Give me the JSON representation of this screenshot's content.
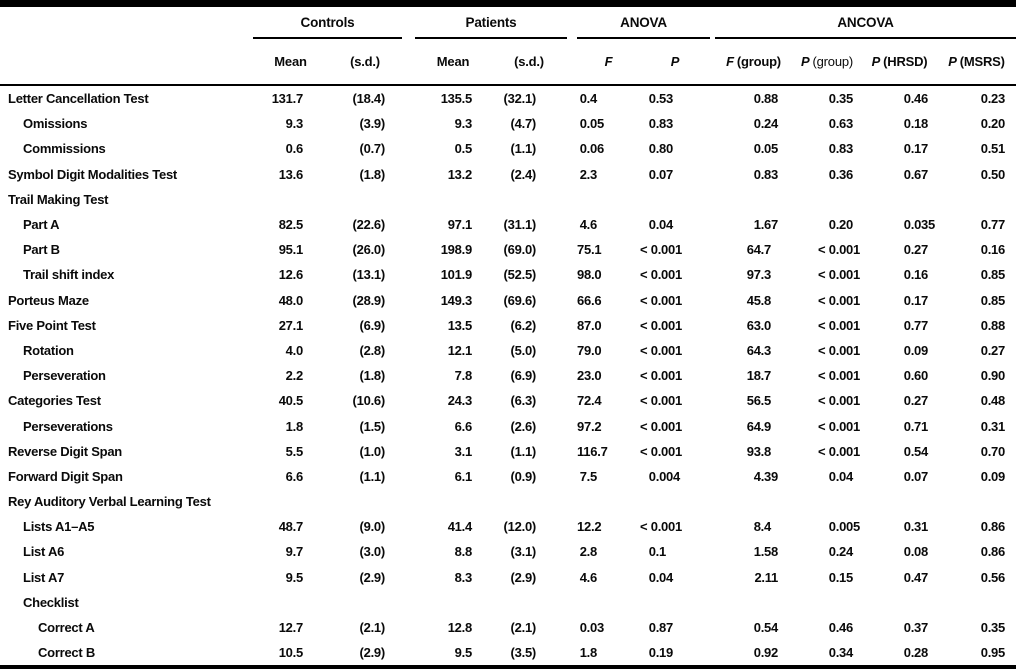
{
  "table": {
    "groups": {
      "controls": "Controls",
      "patients": "Patients",
      "anova": "ANOVA",
      "ancova": "ANCOVA"
    },
    "subheaders": {
      "controls_mean": "Mean",
      "controls_sd": "(s.d.)",
      "patients_mean": "Mean",
      "patients_sd": "(s.d.)",
      "anova_f": "F",
      "anova_p": "P",
      "ancova_f_group_sym": "F",
      "ancova_f_group_rest": "(group)",
      "ancova_p_group_sym": "P",
      "ancova_p_group_rest": "(group)",
      "ancova_p_hrsd_sym": "P",
      "ancova_p_hrsd_rest": "(HRSD)",
      "ancova_p_msrs_sym": "P",
      "ancova_p_msrs_rest": "(MSRS)"
    },
    "rows": [
      {
        "label": "Letter Cancellation Test",
        "indent": 0,
        "values": [
          "131.7",
          "(18.4)",
          "135.5",
          "(32.1)",
          "0.4",
          "0.53",
          "0.88",
          "0.35",
          "0.46",
          "0.23"
        ]
      },
      {
        "label": "Omissions",
        "indent": 1,
        "values": [
          "9.3",
          "(3.9)",
          "9.3",
          "(4.7)",
          "0.05",
          "0.83",
          "0.24",
          "0.63",
          "0.18",
          "0.20"
        ]
      },
      {
        "label": "Commissions",
        "indent": 1,
        "values": [
          "0.6",
          "(0.7)",
          "0.5",
          "(1.1)",
          "0.06",
          "0.80",
          "0.05",
          "0.83",
          "0.17",
          "0.51"
        ]
      },
      {
        "label": "Symbol Digit Modalities Test",
        "indent": 0,
        "values": [
          "13.6",
          "(1.8)",
          "13.2",
          "(2.4)",
          "2.3",
          "0.07",
          "0.83",
          "0.36",
          "0.67",
          "0.50"
        ]
      },
      {
        "label": "Trail Making Test",
        "indent": 0,
        "values": []
      },
      {
        "label": "Part A",
        "indent": 1,
        "values": [
          "82.5",
          "(22.6)",
          "97.1",
          "(31.1)",
          "4.6",
          "0.04",
          "1.67",
          "0.20",
          "0.035",
          "0.77"
        ]
      },
      {
        "label": "Part B",
        "indent": 1,
        "values": [
          "95.1",
          "(26.0)",
          "198.9",
          "(69.0)",
          "75.1",
          "< 0.001",
          "64.7",
          "< 0.001",
          "0.27",
          "0.16"
        ]
      },
      {
        "label": "Trail shift index",
        "indent": 1,
        "values": [
          "12.6",
          "(13.1)",
          "101.9",
          "(52.5)",
          "98.0",
          "< 0.001",
          "97.3",
          "< 0.001",
          "0.16",
          "0.85"
        ]
      },
      {
        "label": "Porteus Maze",
        "indent": 0,
        "values": [
          "48.0",
          "(28.9)",
          "149.3",
          "(69.6)",
          "66.6",
          "< 0.001",
          "45.8",
          "< 0.001",
          "0.17",
          "0.85"
        ]
      },
      {
        "label": "Five Point Test",
        "indent": 0,
        "values": [
          "27.1",
          "(6.9)",
          "13.5",
          "(6.2)",
          "87.0",
          "< 0.001",
          "63.0",
          "< 0.001",
          "0.77",
          "0.88"
        ]
      },
      {
        "label": "Rotation",
        "indent": 1,
        "values": [
          "4.0",
          "(2.8)",
          "12.1",
          "(5.0)",
          "79.0",
          "< 0.001",
          "64.3",
          "< 0.001",
          "0.09",
          "0.27"
        ]
      },
      {
        "label": "Perseveration",
        "indent": 1,
        "values": [
          "2.2",
          "(1.8)",
          "7.8",
          "(6.9)",
          "23.0",
          "< 0.001",
          "18.7",
          "< 0.001",
          "0.60",
          "0.90"
        ]
      },
      {
        "label": "Categories Test",
        "indent": 0,
        "values": [
          "40.5",
          "(10.6)",
          "24.3",
          "(6.3)",
          "72.4",
          "< 0.001",
          "56.5",
          "< 0.001",
          "0.27",
          "0.48"
        ]
      },
      {
        "label": "Perseverations",
        "indent": 1,
        "values": [
          "1.8",
          "(1.5)",
          "6.6",
          "(2.6)",
          "97.2",
          "< 0.001",
          "64.9",
          "< 0.001",
          "0.71",
          "0.31"
        ]
      },
      {
        "label": "Reverse Digit Span",
        "indent": 0,
        "values": [
          "5.5",
          "(1.0)",
          "3.1",
          "(1.1)",
          "116.7",
          "< 0.001",
          "93.8",
          "< 0.001",
          "0.54",
          "0.70"
        ]
      },
      {
        "label": "Forward Digit Span",
        "indent": 0,
        "values": [
          "6.6",
          "(1.1)",
          "6.1",
          "(0.9)",
          "7.5",
          "0.004",
          "4.39",
          "0.04",
          "0.07",
          "0.09"
        ]
      },
      {
        "label": "Rey Auditory Verbal Learning Test",
        "indent": 0,
        "values": []
      },
      {
        "label": "Lists A1–A5",
        "indent": 1,
        "values": [
          "48.7",
          "(9.0)",
          "41.4",
          "(12.0)",
          "12.2",
          "< 0.001",
          "8.4",
          "0.005",
          "0.31",
          "0.86"
        ]
      },
      {
        "label": "List A6",
        "indent": 1,
        "values": [
          "9.7",
          "(3.0)",
          "8.8",
          "(3.1)",
          "2.8",
          "0.1",
          "1.58",
          "0.24",
          "0.08",
          "0.86"
        ]
      },
      {
        "label": "List A7",
        "indent": 1,
        "values": [
          "9.5",
          "(2.9)",
          "8.3",
          "(2.9)",
          "4.6",
          "0.04",
          "2.11",
          "0.15",
          "0.47",
          "0.56"
        ]
      },
      {
        "label": "Checklist",
        "indent": 1,
        "values": []
      },
      {
        "label": "Correct A",
        "indent": 2,
        "values": [
          "12.7",
          "(2.1)",
          "12.8",
          "(2.1)",
          "0.03",
          "0.87",
          "0.54",
          "0.46",
          "0.37",
          "0.35"
        ]
      },
      {
        "label": "Correct B",
        "indent": 2,
        "values": [
          "10.5",
          "(2.9)",
          "9.5",
          "(3.5)",
          "1.8",
          "0.19",
          "0.92",
          "0.34",
          "0.28",
          "0.95"
        ]
      }
    ]
  }
}
